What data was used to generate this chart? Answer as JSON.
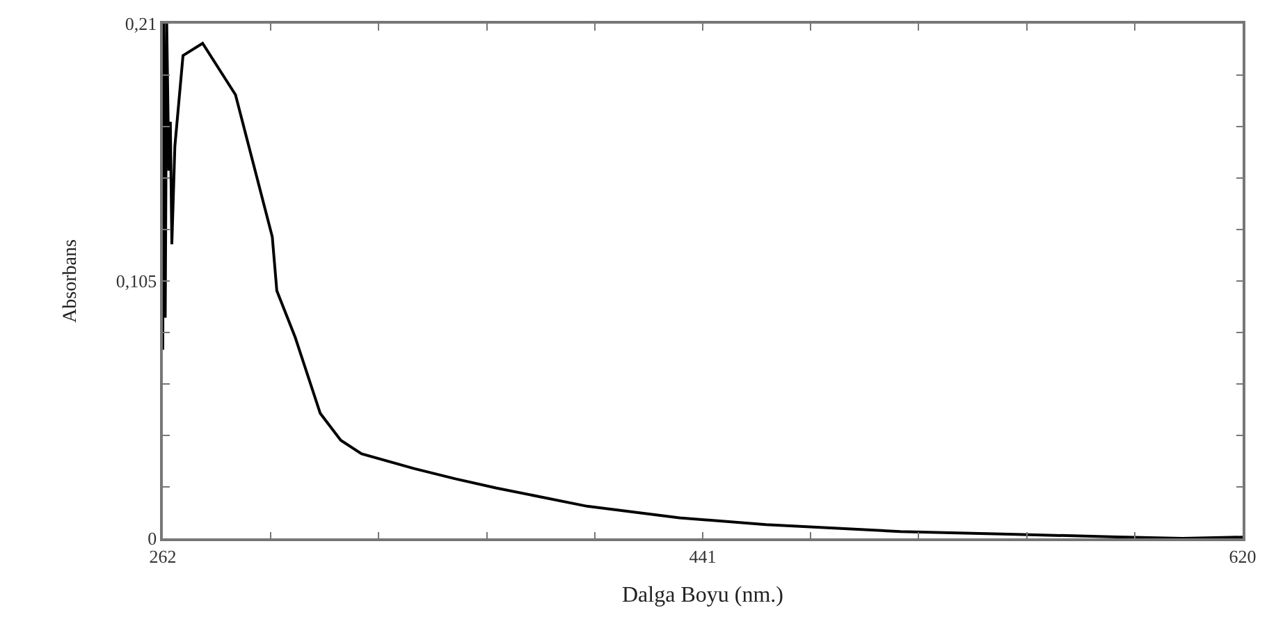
{
  "chart_data": {
    "type": "line",
    "xlabel": "Dalga Boyu (nm.)",
    "ylabel": "Absorbans",
    "x": [
      262,
      262.3,
      262.8,
      263.3,
      264,
      264.5,
      265,
      266,
      268.7,
      275.2,
      286.1,
      298.3,
      299.8,
      305.9,
      314.2,
      321,
      327.9,
      345.3,
      359,
      372.7,
      402.7,
      433.3,
      462,
      506.6,
      542.6,
      578.6,
      600,
      620
    ],
    "series": [
      {
        "color": "#000000",
        "values": [
          0.077,
          0.21,
          0.09,
          0.21,
          0.15,
          0.17,
          0.12,
          0.16,
          0.197,
          0.202,
          0.181,
          0.123,
          0.101,
          0.082,
          0.051,
          0.04,
          0.0345,
          0.0285,
          0.0243,
          0.0205,
          0.0131,
          0.0084,
          0.0056,
          0.0028,
          0.0017,
          0.0006,
          0,
          0.0005
        ]
      }
    ],
    "xlim": [
      262,
      620
    ],
    "ylim": [
      0,
      0.21
    ],
    "xticks": [
      262,
      {
        "value": 297.8,
        "label": null
      },
      {
        "value": 333.6,
        "label": null
      },
      {
        "value": 369.4,
        "label": null
      },
      {
        "value": 405.2,
        "label": null
      },
      441,
      {
        "value": 476.8,
        "label": null
      },
      {
        "value": 512.6,
        "label": null
      },
      {
        "value": 548.4,
        "label": null
      },
      {
        "value": 584.2,
        "label": null
      },
      620
    ],
    "yticks": [
      {
        "value": 0,
        "label": "0"
      },
      {
        "value": 0.021,
        "label": null
      },
      {
        "value": 0.042,
        "label": null
      },
      {
        "value": 0.063,
        "label": null
      },
      {
        "value": 0.084,
        "label": null
      },
      {
        "value": 0.105,
        "label": "0,105"
      },
      {
        "value": 0.126,
        "label": null
      },
      {
        "value": 0.147,
        "label": null
      },
      {
        "value": 0.168,
        "label": null
      },
      {
        "value": 0.189,
        "label": null
      },
      {
        "value": 0.21,
        "label": "0,21"
      }
    ],
    "marker": "none",
    "line_style": "solid"
  }
}
